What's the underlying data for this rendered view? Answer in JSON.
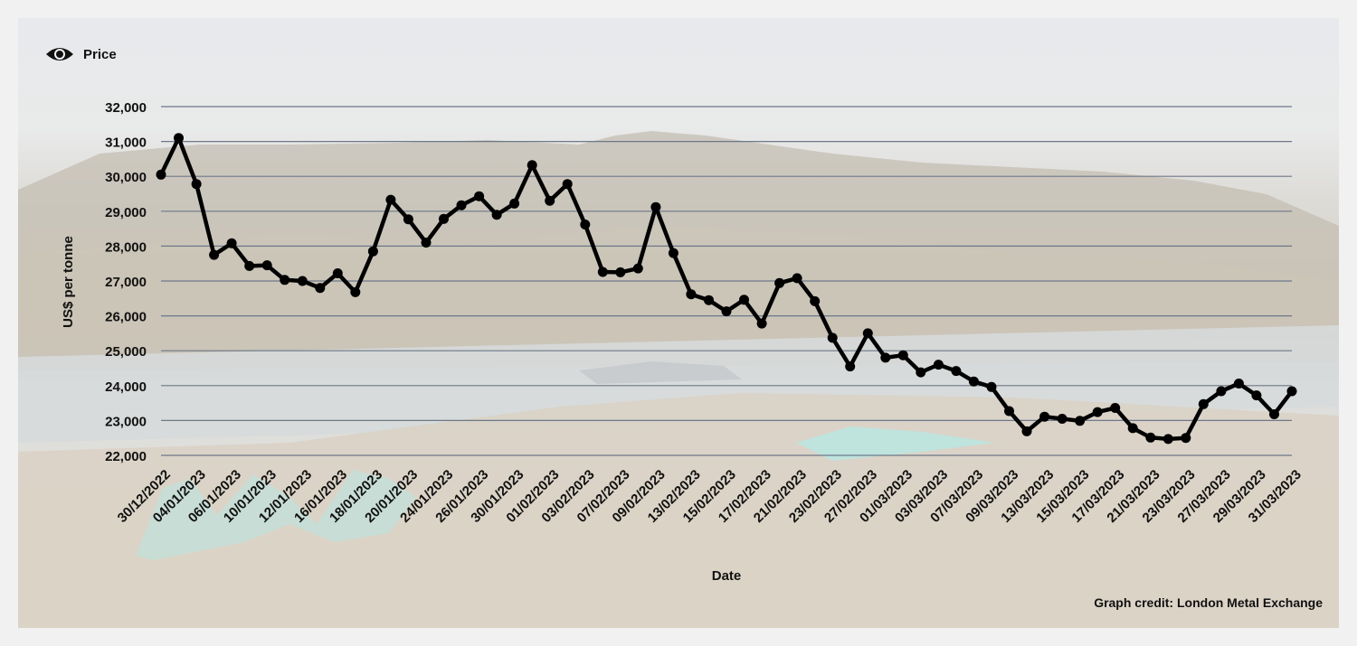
{
  "legend": {
    "label": "Price",
    "icon": "eye-icon"
  },
  "credit": "Graph credit: London Metal Exchange",
  "chart_data": {
    "type": "line",
    "title": "",
    "xlabel": "Date",
    "ylabel": "US$ per tonne",
    "ylim": [
      22000,
      32000
    ],
    "yticks": [
      22000,
      23000,
      24000,
      25000,
      26000,
      27000,
      28000,
      29000,
      30000,
      31000,
      32000
    ],
    "ytick_labels": [
      "22,000",
      "23,000",
      "24,000",
      "25,000",
      "26,000",
      "27,000",
      "28,000",
      "29,000",
      "30,000",
      "31,000",
      "32,000"
    ],
    "grid": "horizontal",
    "legend_position": "top-left",
    "line_color": "#000000",
    "xtick_labels": [
      "30/12/2022",
      "04/01/2023",
      "06/01/2023",
      "10/01/2023",
      "12/01/2023",
      "16/01/2023",
      "18/01/2023",
      "20/01/2023",
      "24/01/2023",
      "26/01/2023",
      "30/01/2023",
      "01/02/2023",
      "03/02/2023",
      "07/02/2023",
      "09/02/2023",
      "13/02/2023",
      "15/02/2023",
      "17/02/2023",
      "21/02/2023",
      "23/02/2023",
      "27/02/2023",
      "01/03/2023",
      "03/03/2023",
      "07/03/2023",
      "09/03/2023",
      "13/03/2023",
      "15/03/2023",
      "17/03/2023",
      "21/03/2023",
      "23/03/2023",
      "27/03/2023",
      "29/03/2023",
      "31/03/2023"
    ],
    "series": [
      {
        "values": [
          30050,
          31100,
          29780,
          27750,
          28080,
          27430,
          27450,
          27030,
          27000,
          26800,
          27220,
          26680,
          27850,
          29330,
          28770,
          28100,
          28780,
          29170,
          29430,
          28900,
          29220,
          30320,
          29300,
          29780,
          28620,
          27260,
          27250,
          27360,
          29120,
          27800,
          26620,
          26450,
          26130,
          26460,
          25780,
          26940,
          27080,
          26420,
          25370,
          24550,
          25500,
          24800,
          24870,
          24380,
          24600,
          24420,
          24120,
          23960,
          23270,
          22690,
          23110,
          23050,
          22990,
          23240,
          23360,
          22780,
          22510,
          22470,
          22500,
          23470,
          23840,
          24060,
          23720,
          23180,
          23840
        ]
      }
    ]
  }
}
